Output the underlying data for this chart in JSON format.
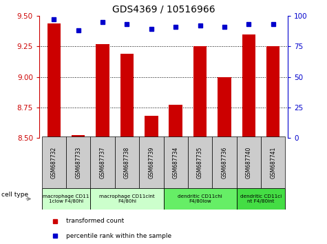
{
  "title": "GDS4369 / 10516966",
  "samples": [
    "GSM687732",
    "GSM687733",
    "GSM687737",
    "GSM687738",
    "GSM687739",
    "GSM687734",
    "GSM687735",
    "GSM687736",
    "GSM687740",
    "GSM687741"
  ],
  "red_values": [
    9.44,
    8.52,
    9.27,
    9.19,
    8.68,
    8.77,
    9.25,
    9.0,
    9.35,
    9.25
  ],
  "blue_values": [
    97,
    88,
    95,
    93,
    89,
    91,
    92,
    91,
    93,
    93
  ],
  "ymin": 8.5,
  "ymax": 9.5,
  "yticks_left": [
    8.5,
    8.75,
    9.0,
    9.25,
    9.5
  ],
  "yticks_right": [
    0,
    25,
    50,
    75,
    100
  ],
  "cell_type_groups": [
    {
      "label": "macrophage CD11\n1clow F4/80hi",
      "start": 0,
      "end": 1,
      "color": "#ccffcc"
    },
    {
      "label": "macrophage CD11cint\nF4/80hi",
      "start": 2,
      "end": 4,
      "color": "#ccffcc"
    },
    {
      "label": "dendritic CD11chi\nF4/80low",
      "start": 5,
      "end": 7,
      "color": "#66ee66"
    },
    {
      "label": "dendritic CD11ci\nnt F4/80int",
      "start": 8,
      "end": 9,
      "color": "#44dd44"
    }
  ],
  "bar_color": "#cc0000",
  "dot_color": "#0000cc",
  "tick_color_left": "#cc0000",
  "tick_color_right": "#0000cc",
  "bar_width": 0.55,
  "plot_bg": "#ffffff",
  "sample_box_color": "#cccccc",
  "grid_lines": [
    8.75,
    9.0,
    9.25
  ]
}
